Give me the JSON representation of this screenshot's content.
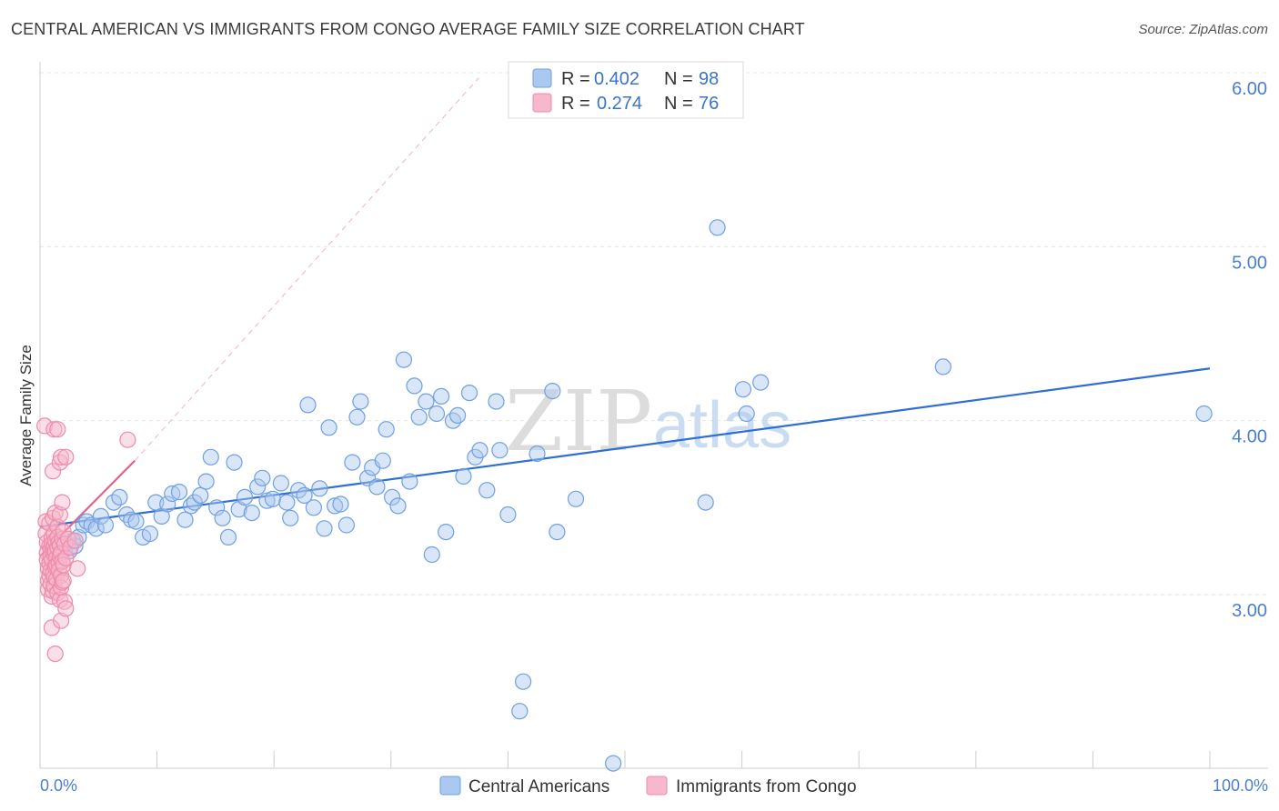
{
  "title": "CENTRAL AMERICAN VS IMMIGRANTS FROM CONGO AVERAGE FAMILY SIZE CORRELATION CHART",
  "source": "Source: ZipAtlas.com",
  "watermark": {
    "zip": "ZIP",
    "atlas": "atlas"
  },
  "colors": {
    "blue_fill": "#aac8f0",
    "blue_stroke": "#6fa0e0",
    "blue_line": "#2f6fd1",
    "pink_fill": "#f6b8cc",
    "pink_stroke": "#ee8aaa",
    "pink_line": "#e8608a",
    "grid": "#e6e6e6",
    "tick_label": "#4a7fd0"
  },
  "legend": {
    "rows": [
      {
        "r_label": "R = ",
        "r_value": "0.402",
        "n_label": "N = ",
        "n_value": "98"
      },
      {
        "r_label": "R = ",
        "r_value": "0.274",
        "n_label": "N = ",
        "n_value": "76"
      }
    ]
  },
  "chart_data": {
    "type": "scatter",
    "title": "CENTRAL AMERICAN VS IMMIGRANTS FROM CONGO AVERAGE FAMILY SIZE CORRELATION CHART",
    "xlabel": "",
    "ylabel": "Average Family Size",
    "xlim": [
      0,
      100
    ],
    "ylim": [
      2.1,
      6.1
    ],
    "x_tick_labels": [
      "0.0%",
      "100.0%"
    ],
    "y_ticks": [
      3.0,
      4.0,
      5.0,
      6.0
    ],
    "y_tick_labels": [
      "3.00",
      "4.00",
      "5.00",
      "6.00"
    ],
    "grid": "horizontal dashed",
    "legend_placement": "top-center",
    "series": [
      {
        "name": "Central Americans",
        "color": "#aac8f0",
        "points": [
          [
            1.5,
            3.3
          ],
          [
            1.9,
            3.19
          ],
          [
            2.1,
            3.26
          ],
          [
            2.5,
            3.25
          ],
          [
            2.8,
            3.31
          ],
          [
            3.0,
            3.28
          ],
          [
            3.3,
            3.33
          ],
          [
            3.7,
            3.4
          ],
          [
            4.0,
            3.42
          ],
          [
            4.4,
            3.4
          ],
          [
            4.8,
            3.38
          ],
          [
            5.2,
            3.45
          ],
          [
            5.6,
            3.4
          ],
          [
            6.3,
            3.53
          ],
          [
            6.8,
            3.56
          ],
          [
            7.4,
            3.46
          ],
          [
            7.8,
            3.43
          ],
          [
            8.2,
            3.42
          ],
          [
            8.8,
            3.33
          ],
          [
            9.4,
            3.35
          ],
          [
            9.9,
            3.53
          ],
          [
            10.4,
            3.45
          ],
          [
            10.9,
            3.52
          ],
          [
            11.3,
            3.58
          ],
          [
            11.9,
            3.59
          ],
          [
            12.4,
            3.43
          ],
          [
            12.9,
            3.51
          ],
          [
            13.2,
            3.53
          ],
          [
            13.7,
            3.57
          ],
          [
            14.2,
            3.65
          ],
          [
            14.6,
            3.79
          ],
          [
            15.1,
            3.5
          ],
          [
            15.6,
            3.44
          ],
          [
            16.1,
            3.33
          ],
          [
            16.6,
            3.76
          ],
          [
            17.0,
            3.49
          ],
          [
            17.5,
            3.56
          ],
          [
            18.1,
            3.47
          ],
          [
            18.6,
            3.62
          ],
          [
            19.0,
            3.67
          ],
          [
            19.4,
            3.54
          ],
          [
            19.9,
            3.55
          ],
          [
            20.6,
            3.64
          ],
          [
            21.1,
            3.53
          ],
          [
            21.4,
            3.44
          ],
          [
            22.1,
            3.6
          ],
          [
            22.6,
            3.57
          ],
          [
            22.9,
            4.09
          ],
          [
            23.4,
            3.5
          ],
          [
            23.9,
            3.61
          ],
          [
            24.3,
            3.38
          ],
          [
            24.7,
            3.96
          ],
          [
            25.2,
            3.51
          ],
          [
            25.7,
            3.52
          ],
          [
            26.2,
            3.4
          ],
          [
            26.7,
            3.76
          ],
          [
            27.1,
            4.02
          ],
          [
            27.4,
            4.11
          ],
          [
            28.0,
            3.67
          ],
          [
            28.4,
            3.73
          ],
          [
            28.8,
            3.62
          ],
          [
            29.3,
            3.77
          ],
          [
            29.6,
            3.95
          ],
          [
            30.1,
            3.56
          ],
          [
            30.6,
            3.51
          ],
          [
            31.1,
            4.35
          ],
          [
            31.6,
            3.65
          ],
          [
            32.0,
            4.2
          ],
          [
            32.4,
            4.02
          ],
          [
            33.0,
            4.11
          ],
          [
            33.5,
            3.23
          ],
          [
            33.9,
            4.04
          ],
          [
            34.3,
            4.14
          ],
          [
            34.7,
            3.36
          ],
          [
            35.3,
            4.0
          ],
          [
            35.7,
            4.03
          ],
          [
            36.2,
            3.68
          ],
          [
            36.7,
            4.16
          ],
          [
            37.2,
            3.79
          ],
          [
            37.6,
            3.83
          ],
          [
            38.2,
            3.6
          ],
          [
            39.0,
            4.11
          ],
          [
            39.3,
            3.83
          ],
          [
            40.0,
            3.46
          ],
          [
            41.0,
            2.33
          ],
          [
            41.3,
            2.5
          ],
          [
            42.5,
            3.81
          ],
          [
            43.8,
            4.17
          ],
          [
            44.2,
            3.36
          ],
          [
            45.8,
            3.55
          ],
          [
            49.0,
            2.03
          ],
          [
            56.9,
            3.53
          ],
          [
            57.9,
            5.11
          ],
          [
            60.1,
            4.18
          ],
          [
            60.4,
            4.04
          ],
          [
            61.6,
            4.22
          ],
          [
            77.2,
            4.31
          ],
          [
            99.5,
            4.04
          ]
        ]
      },
      {
        "name": "Immigrants from Congo",
        "color": "#f6b8cc",
        "points": [
          [
            0.4,
            3.97
          ],
          [
            0.5,
            3.42
          ],
          [
            0.5,
            3.35
          ],
          [
            0.6,
            3.3
          ],
          [
            0.6,
            3.24
          ],
          [
            0.6,
            3.2
          ],
          [
            0.7,
            3.15
          ],
          [
            0.7,
            3.08
          ],
          [
            0.7,
            3.03
          ],
          [
            0.8,
            3.41
          ],
          [
            0.8,
            3.28
          ],
          [
            0.8,
            3.18
          ],
          [
            0.8,
            3.11
          ],
          [
            0.9,
            3.26
          ],
          [
            0.9,
            3.22
          ],
          [
            0.9,
            3.14
          ],
          [
            0.9,
            3.06
          ],
          [
            1.0,
            3.33
          ],
          [
            1.0,
            3.29
          ],
          [
            1.0,
            3.2
          ],
          [
            1.0,
            2.99
          ],
          [
            1.0,
            2.81
          ],
          [
            1.1,
            3.71
          ],
          [
            1.1,
            3.44
          ],
          [
            1.1,
            3.26
          ],
          [
            1.1,
            3.12
          ],
          [
            1.1,
            3.02
          ],
          [
            1.2,
            3.95
          ],
          [
            1.2,
            3.35
          ],
          [
            1.2,
            3.28
          ],
          [
            1.2,
            3.23
          ],
          [
            1.2,
            3.1
          ],
          [
            1.2,
            3.05
          ],
          [
            1.3,
            2.66
          ],
          [
            1.3,
            3.47
          ],
          [
            1.3,
            3.31
          ],
          [
            1.3,
            3.25
          ],
          [
            1.3,
            3.16
          ],
          [
            1.4,
            3.21
          ],
          [
            1.4,
            3.17
          ],
          [
            1.4,
            3.09
          ],
          [
            1.5,
            3.95
          ],
          [
            1.5,
            3.39
          ],
          [
            1.5,
            3.33
          ],
          [
            1.5,
            3.27
          ],
          [
            1.5,
            3.01
          ],
          [
            1.6,
            3.3
          ],
          [
            1.6,
            3.18
          ],
          [
            1.6,
            3.14
          ],
          [
            1.7,
            3.76
          ],
          [
            1.7,
            3.46
          ],
          [
            1.7,
            3.28
          ],
          [
            1.7,
            3.22
          ],
          [
            1.7,
            2.97
          ],
          [
            1.8,
            3.79
          ],
          [
            1.8,
            3.24
          ],
          [
            1.8,
            3.11
          ],
          [
            1.8,
            3.04
          ],
          [
            1.8,
            2.85
          ],
          [
            1.9,
            3.53
          ],
          [
            1.9,
            3.32
          ],
          [
            1.9,
            3.19
          ],
          [
            1.9,
            3.07
          ],
          [
            2.0,
            3.36
          ],
          [
            2.0,
            3.17
          ],
          [
            2.0,
            3.08
          ],
          [
            2.1,
            3.29
          ],
          [
            2.1,
            2.96
          ],
          [
            2.2,
            3.79
          ],
          [
            2.2,
            3.21
          ],
          [
            2.2,
            2.92
          ],
          [
            2.4,
            3.32
          ],
          [
            2.6,
            3.27
          ],
          [
            3.0,
            3.31
          ],
          [
            3.2,
            3.15
          ],
          [
            7.5,
            3.89
          ]
        ]
      }
    ],
    "trend_lines": [
      {
        "series": "Central Americans",
        "x": [
          0,
          100
        ],
        "y": [
          3.39,
          4.3
        ]
      },
      {
        "series": "Immigrants from Congo",
        "x": [
          0,
          8.1
        ],
        "y": [
          3.22,
          3.77
        ]
      },
      {
        "series": "Immigrants from Congo (extended)",
        "x": [
          8.1,
          37.5
        ],
        "y": [
          3.77,
          5.97
        ]
      }
    ]
  },
  "bottom_legend": [
    {
      "label": "Central Americans"
    },
    {
      "label": "Immigrants from Congo"
    }
  ]
}
